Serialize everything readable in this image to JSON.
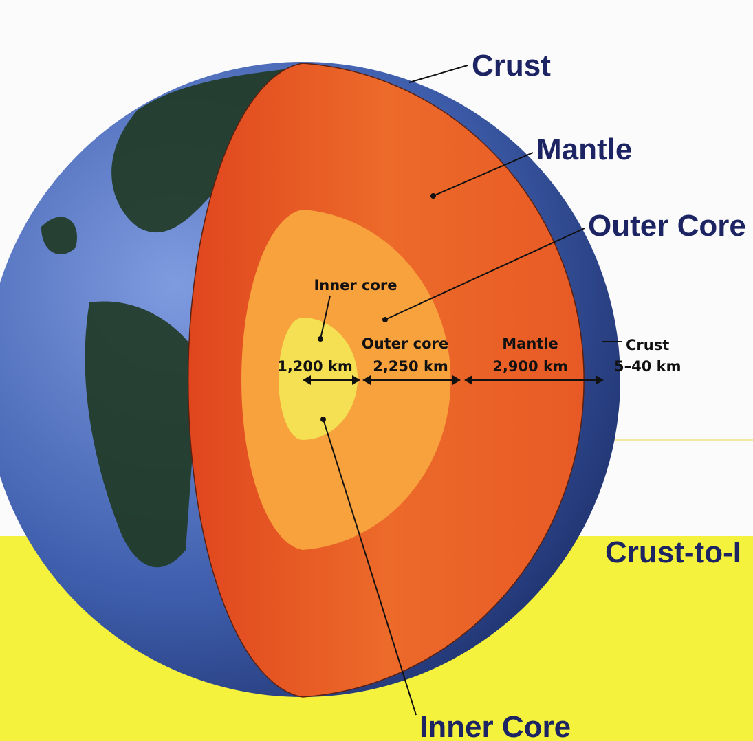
{
  "labels": {
    "crust": "Crust",
    "mantle": "Mantle",
    "outer_core": "Outer Core",
    "inner_core": "Inner Core"
  },
  "inset": {
    "inner_core": "Inner core",
    "outer_core": "Outer core",
    "mantle": "Mantle",
    "crust": "Crust"
  },
  "measurements": {
    "inner_core": "1,200 km",
    "outer_core": "2,250 km",
    "mantle": "2,900 km",
    "crust": "5–40 km"
  },
  "banner": "Crust-to-I"
}
